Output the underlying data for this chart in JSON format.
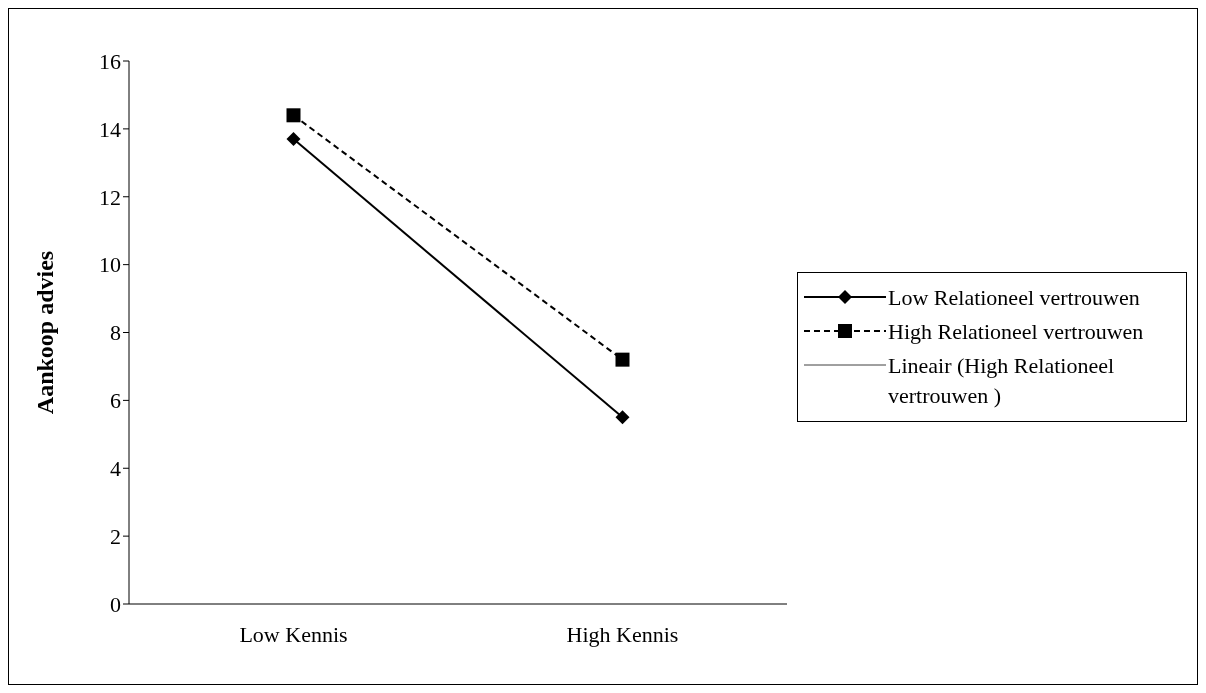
{
  "chart_data": {
    "type": "line",
    "ylabel": "Aankoop advies",
    "categories": [
      "Low Kennis",
      "High Kennis"
    ],
    "series": [
      {
        "name": "Low Relationeel vertrouwen",
        "color": "#000000",
        "values": [
          13.7,
          5.5
        ],
        "marker": "diamond",
        "line_style": "solid"
      },
      {
        "name": "High Relationeel vertrouwen",
        "color": "#000000",
        "values": [
          14.4,
          7.2
        ],
        "marker": "square",
        "line_style": "dashed"
      },
      {
        "name": "Lineair (High Relationeel vertrouwen )",
        "color": "#404040",
        "values": [
          null,
          null
        ],
        "marker": "none",
        "line_style": "solid"
      }
    ],
    "ylim": [
      0,
      16
    ],
    "yticks": [
      0,
      2,
      4,
      6,
      8,
      10,
      12,
      14,
      16
    ],
    "legend": "right"
  }
}
